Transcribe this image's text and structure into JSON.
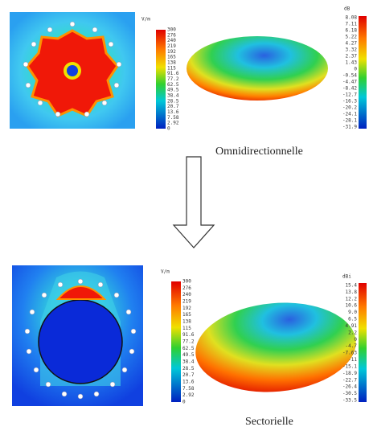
{
  "panels": [
    {
      "field_unit": "V/m",
      "field_ticks": [
        "300",
        "276",
        "240",
        "219",
        "192",
        "165",
        "138",
        "115",
        "91.6",
        "77.2",
        "62.5",
        "49.5",
        "38.4",
        "28.5",
        "20.7",
        "13.6",
        "7.58",
        "2.92",
        "0"
      ],
      "pattern_unit": "dB",
      "pattern_ticks": [
        "8.08",
        "7.11",
        "6.18",
        "5.22",
        "4.27",
        "3.32",
        "2.37",
        "1.43",
        "0",
        "-0.54",
        "-4.47",
        "-8.42",
        "-12.7",
        "-16.3",
        "-20.2",
        "-24.1",
        "-28.1",
        "-31.9"
      ],
      "caption": "Omnidirectionnelle"
    },
    {
      "field_unit": "V/m",
      "field_ticks": [
        "300",
        "276",
        "240",
        "219",
        "192",
        "165",
        "138",
        "115",
        "91.6",
        "77.2",
        "62.5",
        "49.5",
        "38.4",
        "28.5",
        "20.7",
        "13.6",
        "7.58",
        "2.92",
        "0"
      ],
      "pattern_unit": "dBi",
      "pattern_ticks": [
        "15.4",
        "13.8",
        "12.2",
        "10.6",
        "9.0",
        "6.5",
        "4.91",
        "2.2",
        "0",
        "-4.7",
        "-7.63",
        "-11",
        "-15.1",
        "-18.9",
        "-22.7",
        "-26.4",
        "-30.5",
        "-33.5"
      ],
      "caption": "Sectorielle"
    }
  ]
}
